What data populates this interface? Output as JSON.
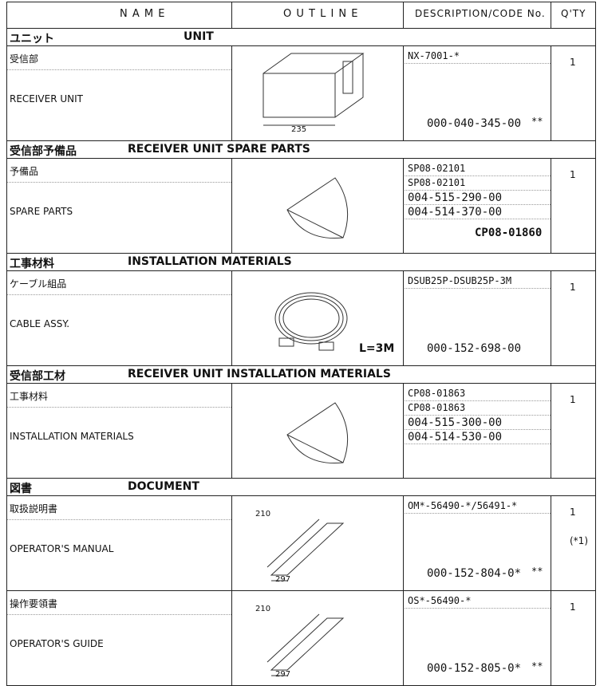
{
  "header": {
    "name": "N A M E",
    "outline": "O U T L I N E",
    "description": "DESCRIPTION/CODE No.",
    "qty": "Q'TY"
  },
  "sections": [
    {
      "title_ja": "ユニット",
      "title_en": "UNIT",
      "items": [
        {
          "name_ja": "受信部",
          "name_en": "RECEIVER UNIT",
          "outline_labels": [
            "235"
          ],
          "description": [
            "NX-7001-*"
          ],
          "code": "000-040-345-00",
          "mark": "**",
          "qty": "1"
        }
      ]
    },
    {
      "title_ja": "受信部予備品",
      "title_en": "RECEIVER UNIT SPARE PARTS",
      "items": [
        {
          "name_ja": "予備品",
          "name_en": "SPARE PARTS",
          "description": [
            "SP08-02101",
            "SP08-02101",
            "004-515-290-00",
            "004-514-370-00"
          ],
          "kit": "CP08-01860",
          "qty": "1"
        }
      ]
    },
    {
      "title_ja": "工事材料",
      "title_en": "INSTALLATION MATERIALS",
      "items": [
        {
          "name_ja": "ケーブル組品",
          "name_en": "CABLE ASSY.",
          "outline_labels": [
            "L=3M"
          ],
          "description": [
            "DSUB25P-DSUB25P-3M"
          ],
          "code": "000-152-698-00",
          "qty": "1"
        }
      ]
    },
    {
      "title_ja": "受信部工材",
      "title_en": "RECEIVER UNIT INSTALLATION MATERIALS",
      "items": [
        {
          "name_ja": "工事材料",
          "name_en": "INSTALLATION MATERIALS",
          "description": [
            "CP08-01863",
            "CP08-01863",
            "004-515-300-00",
            "004-514-530-00"
          ],
          "qty": "1"
        }
      ]
    },
    {
      "title_ja": "図書",
      "title_en": "DOCUMENT",
      "items": [
        {
          "name_ja": "取扱説明書",
          "name_en": "OPERATOR'S MANUAL",
          "outline_labels": [
            "210",
            "297"
          ],
          "description": [
            "OM*-56490-*/56491-*"
          ],
          "code": "000-152-804-0*",
          "mark": "**",
          "qty": "1",
          "note": "(*1)"
        },
        {
          "name_ja": "操作要領書",
          "name_en": "OPERATOR'S GUIDE",
          "outline_labels": [
            "210",
            "297"
          ],
          "description": [
            "OS*-56490-*"
          ],
          "code": "000-152-805-0*",
          "mark": "**",
          "qty": "1"
        }
      ]
    }
  ]
}
